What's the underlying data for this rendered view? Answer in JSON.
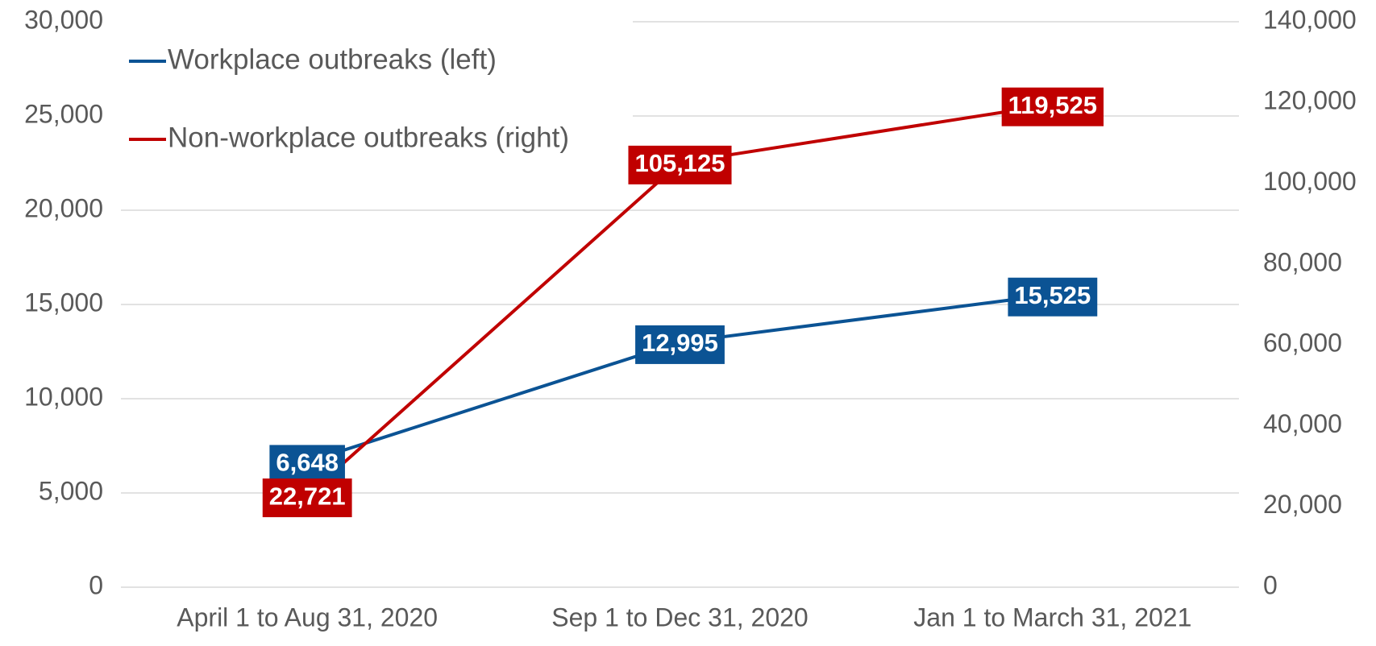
{
  "chart_data": {
    "type": "line",
    "categories": [
      "April 1 to Aug 31, 2020",
      "Sep 1 to Dec 31, 2020",
      "Jan 1 to March 31, 2021"
    ],
    "series": [
      {
        "name": "Workplace outbreaks (left)",
        "color": "#0b5394",
        "values": [
          6648,
          12995,
          15525
        ],
        "value_labels": [
          "6,648",
          "12,995",
          "15,525"
        ]
      },
      {
        "name": "Non-workplace outbreaks (right)",
        "color": "#c00000",
        "axis": "y2",
        "values": [
          22721,
          105125,
          119525
        ],
        "value_labels": [
          "22,721",
          "105,125",
          "119,525"
        ]
      }
    ],
    "ylim": [
      0,
      30000
    ],
    "yticks": [
      0,
      {
        "value": 5000,
        "label": "5,000"
      },
      {
        "value": 10000,
        "label": "10,000"
      },
      {
        "value": 15000,
        "label": "15,000"
      },
      {
        "value": 20000,
        "label": "20,000"
      },
      {
        "value": 25000,
        "label": "25,000"
      },
      {
        "value": 30000,
        "label": "30,000"
      }
    ],
    "y2lim": [
      0,
      140000
    ],
    "y2ticks": [
      0,
      {
        "value": 20000,
        "label": "20,000"
      },
      {
        "value": 40000,
        "label": "40,000"
      },
      {
        "value": 60000,
        "label": "60,000"
      },
      {
        "value": 80000,
        "label": "80,000"
      },
      {
        "value": 100000,
        "label": "100,000"
      },
      {
        "value": 120000,
        "label": "120,000"
      },
      {
        "value": 140000,
        "label": "140,000"
      }
    ],
    "grid": true,
    "legend": "top-left"
  }
}
